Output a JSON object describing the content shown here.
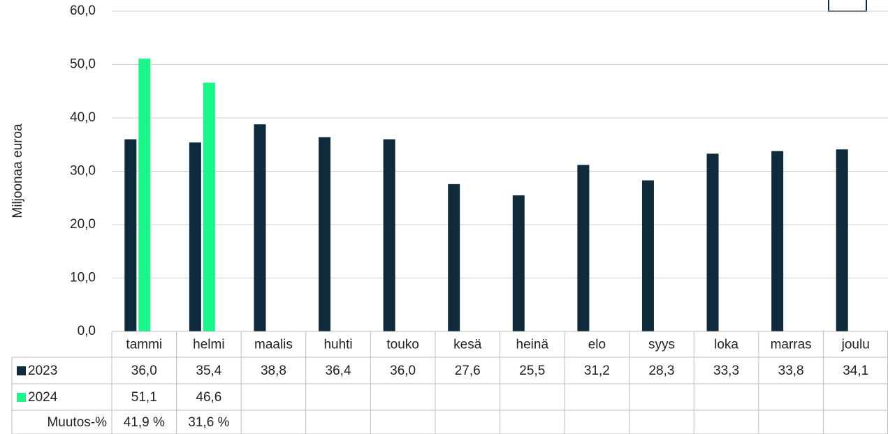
{
  "chart_data": {
    "type": "bar",
    "y_label": "Miljoonaa euroa",
    "categories": [
      "tammi",
      "helmi",
      "maalis",
      "huhti",
      "touko",
      "kesä",
      "heinä",
      "elo",
      "syys",
      "loka",
      "marras",
      "joulu"
    ],
    "series": [
      {
        "name": "2023",
        "color": "#0f2a3b",
        "values": [
          36.0,
          35.4,
          38.8,
          36.4,
          36.0,
          27.6,
          25.5,
          31.2,
          28.3,
          33.3,
          33.8,
          34.1
        ],
        "value_labels": [
          "36,0",
          "35,4",
          "38,8",
          "36,4",
          "36,0",
          "27,6",
          "25,5",
          "31,2",
          "28,3",
          "33,3",
          "33,8",
          "34,1"
        ]
      },
      {
        "name": "2024",
        "color": "#1cf58a",
        "values": [
          51.1,
          46.6,
          null,
          null,
          null,
          null,
          null,
          null,
          null,
          null,
          null,
          null
        ],
        "value_labels": [
          "51,1",
          "46,6",
          null,
          null,
          null,
          null,
          null,
          null,
          null,
          null,
          null,
          null
        ]
      }
    ],
    "change_row": {
      "name": "Muutos-%",
      "values": [
        41.9,
        31.6,
        null,
        null,
        null,
        null,
        null,
        null,
        null,
        null,
        null,
        null
      ],
      "value_labels": [
        "41,9 %",
        "31,6 %",
        null,
        null,
        null,
        null,
        null,
        null,
        null,
        null,
        null,
        null
      ]
    },
    "ylim": [
      0,
      60
    ],
    "yticks": [
      {
        "value": 0,
        "label": "0,0"
      },
      {
        "value": 10,
        "label": "10,0"
      },
      {
        "value": 20,
        "label": "20,0"
      },
      {
        "value": 30,
        "label": "30,0"
      },
      {
        "value": 40,
        "label": "40,0"
      },
      {
        "value": 50,
        "label": "50,0"
      },
      {
        "value": 60,
        "label": "60,0"
      }
    ],
    "grid": true
  }
}
